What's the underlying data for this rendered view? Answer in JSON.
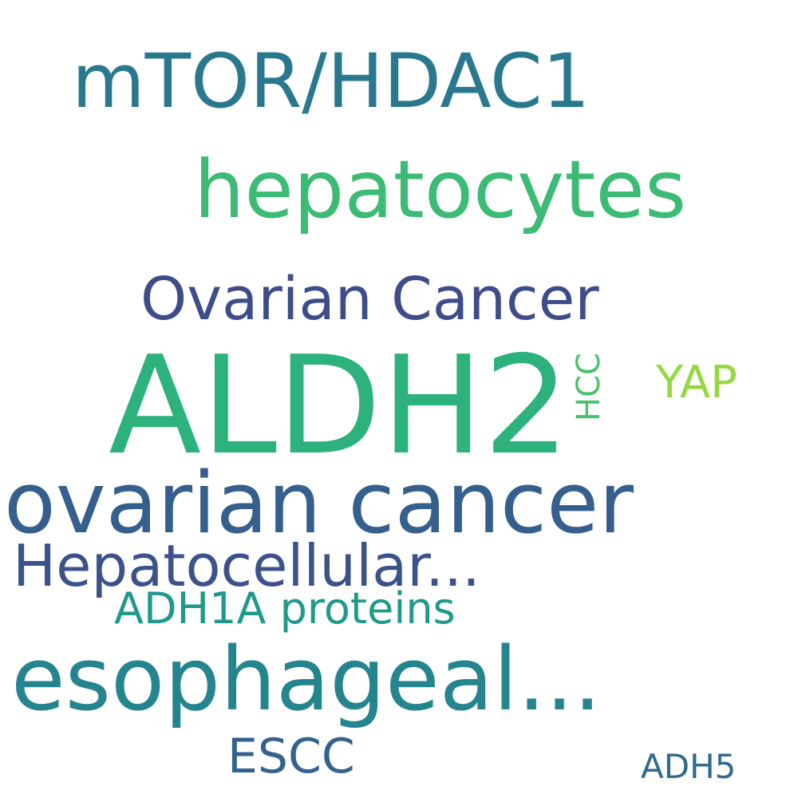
{
  "words": {
    "mtor_hdac1": "mTOR/HDAC1",
    "hepatocytes": "hepatocytes",
    "ovarian_cancer_cap": "Ovarian Cancer",
    "aldh2": "ALDH2",
    "hcc": "HCC",
    "yap": "YAP",
    "ovarian_cancer_lower": "ovarian cancer",
    "hepatocellular": "Hepatocellular...",
    "adh1a_proteins": "ADH1A proteins",
    "esophageal": "esophageal...",
    "escc": "ESCC",
    "adh5": "ADH5"
  },
  "colors": {
    "background": "#ffffff",
    "mtor_hdac1": "#2a788e",
    "hepatocytes": "#3cbb75",
    "ovarian_cancer_cap": "#3e4c8a",
    "aldh2": "#2db27d",
    "hcc": "#4ac16d",
    "yap": "#95d840",
    "ovarian_cancer_lower": "#355f8d",
    "hepatocellular": "#3b528b",
    "adh1a_proteins": "#1f9a8a",
    "esophageal": "#25858e",
    "escc": "#33638d",
    "adh5": "#306a8e"
  }
}
